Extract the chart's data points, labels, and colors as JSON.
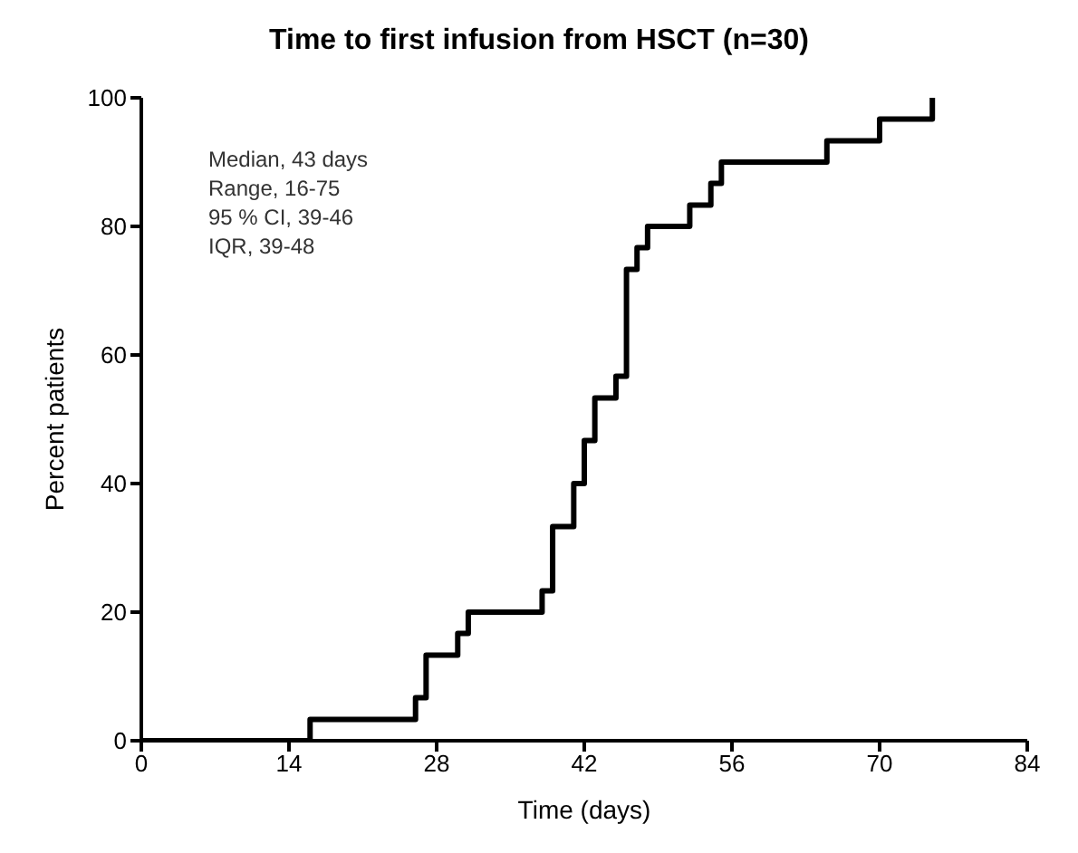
{
  "chart_data": {
    "type": "step",
    "title": "Time to first infusion from HSCT (n=30)",
    "xlabel": "Time (days)",
    "ylabel": "Percent patients",
    "x": [
      0,
      16,
      26,
      27,
      30,
      31,
      38,
      39,
      41,
      42,
      43,
      45,
      46,
      47,
      48,
      52,
      54,
      55,
      65,
      70,
      75
    ],
    "series": [
      {
        "color": "#000000",
        "values": [
          0,
          3.3,
          6.7,
          13.3,
          16.7,
          20,
          23.3,
          33.3,
          40,
          46.7,
          53.3,
          56.7,
          73.3,
          76.7,
          80,
          83.3,
          86.7,
          90,
          93.3,
          96.7,
          100
        ]
      }
    ],
    "xlim": [
      0,
      84
    ],
    "xticks": [
      0,
      14,
      28,
      42,
      56,
      70,
      84
    ],
    "ylim": [
      0,
      100
    ],
    "yticks": [
      0,
      20,
      40,
      60,
      80,
      100
    ],
    "grid": false,
    "legend": false,
    "marker": "none",
    "annotations": [
      "Median, 43 days",
      "Range, 16-75",
      "95 % CI, 39-46",
      "IQR, 39-48"
    ]
  }
}
